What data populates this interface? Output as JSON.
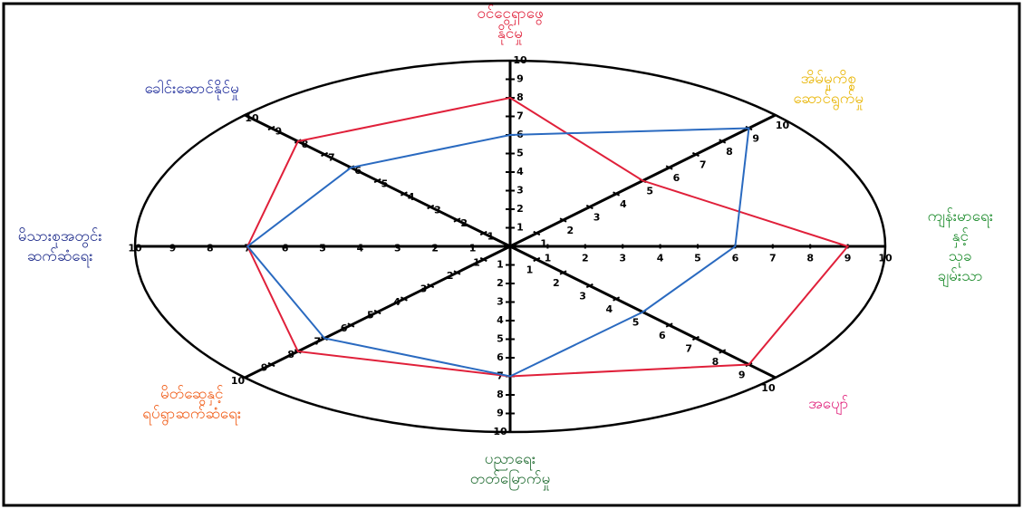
{
  "chart_data": {
    "type": "radar",
    "categories": [
      "ဝင်ငွေရှာဖွေ\nနိုင်မှု",
      "အိမ်မှုကိစ္စ\nဆောင်ရွက်မှု",
      "ကျန်းမာရေးနှင့်\nသုခချမ်းသာ",
      "အပျော်",
      "ပညာရေး\nတတ်မြောက်မှု",
      "မိတ်ဆွေနှင့်\nရပ်ရွာဆက်ဆံရေး",
      "မိသားစုအတွင်း\nဆက်ဆံရေး",
      "ခေါင်းဆောင်နိုင်မှု"
    ],
    "category_colors": [
      "#e0203a",
      "#e8b400",
      "#1a8a2a",
      "#e0207a",
      "#1f6b30",
      "#f05a14",
      "#1c2a8a",
      "#1c2a9a"
    ],
    "rlim": [
      0,
      10
    ],
    "rticks": [
      1,
      2,
      3,
      4,
      5,
      6,
      7,
      8,
      9,
      10
    ],
    "series": [
      {
        "color": "#e0203a",
        "values": [
          8,
          5,
          9,
          9,
          7,
          8,
          7,
          8
        ]
      },
      {
        "color": "#2a6ac0",
        "values": [
          6,
          9,
          6,
          5,
          7,
          7,
          7,
          6
        ]
      }
    ]
  }
}
